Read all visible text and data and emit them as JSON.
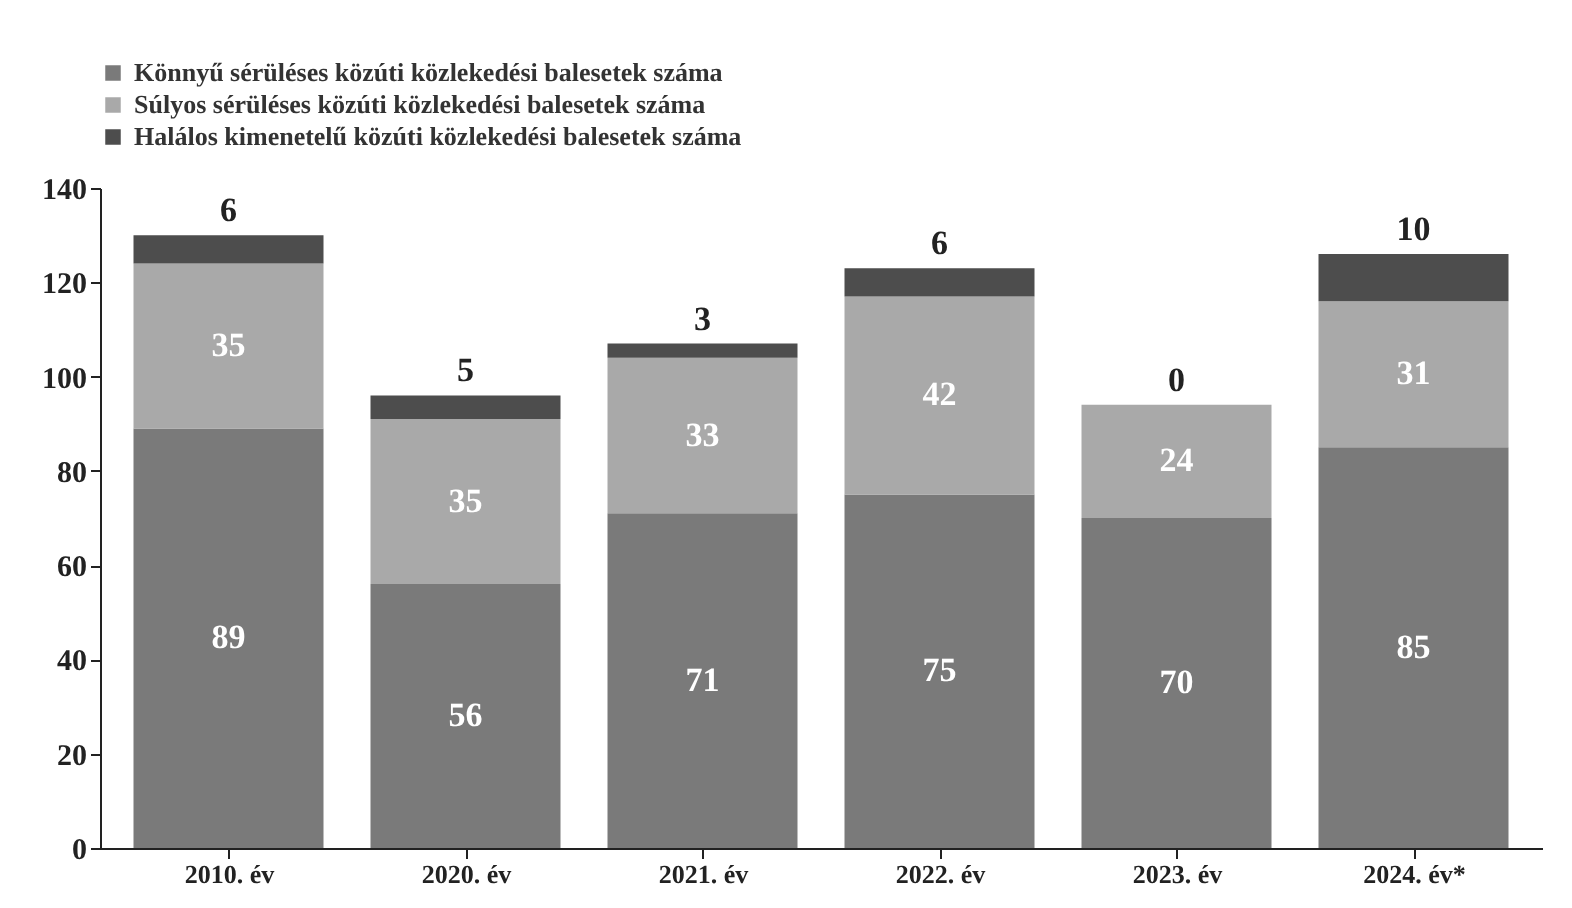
{
  "chart_data": {
    "type": "bar",
    "stacked": true,
    "categories": [
      "2010. év",
      "2020. év",
      "2021. év",
      "2022. év",
      "2023. év",
      "2024. év*"
    ],
    "series": [
      {
        "name": "Könnyű sérüléses közúti közlekedési balesetek száma",
        "color": "#7a7a7a",
        "values": [
          89,
          56,
          71,
          75,
          70,
          85
        ]
      },
      {
        "name": "Súlyos sérüléses közúti közlekedési balesetek száma",
        "color": "#a9a9a9",
        "values": [
          35,
          35,
          33,
          42,
          24,
          31
        ]
      },
      {
        "name": "Halálos kimenetelű közúti közlekedési balesetek száma",
        "color": "#4d4d4d",
        "values": [
          6,
          5,
          3,
          6,
          0,
          10
        ]
      }
    ],
    "ylim": [
      0,
      140
    ],
    "yticks": [
      0,
      20,
      40,
      60,
      80,
      100,
      120,
      140
    ],
    "grid": false,
    "legend": "top",
    "data_labels": true
  }
}
